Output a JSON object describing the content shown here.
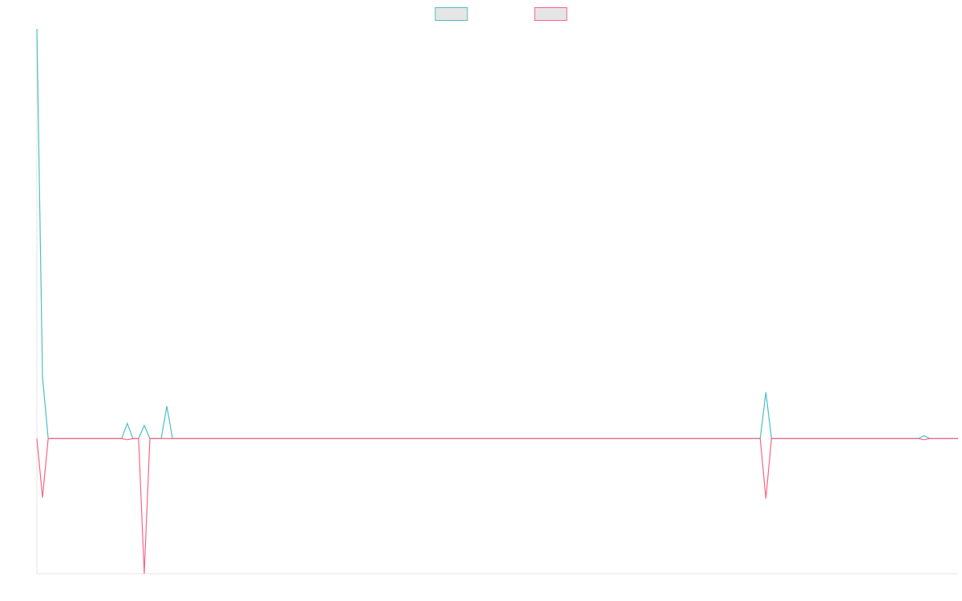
{
  "chart_data": {
    "type": "line",
    "title": "",
    "xlabel": "",
    "ylabel": "",
    "grid": false,
    "legend": "top-center",
    "x_count": 164,
    "ylim": [
      -0.33,
      1.0
    ],
    "series": [
      {
        "color": "#4bc0c0",
        "fill": "#e5e5e5",
        "points": [
          [
            0,
            1.0
          ],
          [
            1,
            0.15
          ],
          [
            2,
            0.0
          ],
          [
            15,
            0.0
          ],
          [
            16,
            0.037
          ],
          [
            17,
            0.0
          ],
          [
            18,
            0.0
          ],
          [
            19,
            0.032
          ],
          [
            20,
            0.0
          ],
          [
            22,
            0.0
          ],
          [
            23,
            0.079
          ],
          [
            24,
            0.0
          ],
          [
            128,
            0.0
          ],
          [
            129,
            0.113
          ],
          [
            130,
            0.0
          ],
          [
            156,
            0.0
          ],
          [
            157,
            0.007
          ],
          [
            158,
            0.0
          ],
          [
            163,
            0.0
          ]
        ]
      },
      {
        "color": "#ff6384",
        "fill": "#e5e5e5",
        "points": [
          [
            0,
            0.0
          ],
          [
            1,
            -0.144
          ],
          [
            2,
            0.0
          ],
          [
            15,
            0.0
          ],
          [
            16,
            -0.003
          ],
          [
            17,
            0.0
          ],
          [
            18,
            0.0
          ],
          [
            19,
            -0.33
          ],
          [
            20,
            0.0
          ],
          [
            128,
            0.0
          ],
          [
            129,
            -0.146
          ],
          [
            130,
            0.0
          ],
          [
            156,
            0.0
          ],
          [
            157,
            -0.003
          ],
          [
            158,
            0.0
          ],
          [
            163,
            0.0
          ]
        ]
      }
    ]
  }
}
